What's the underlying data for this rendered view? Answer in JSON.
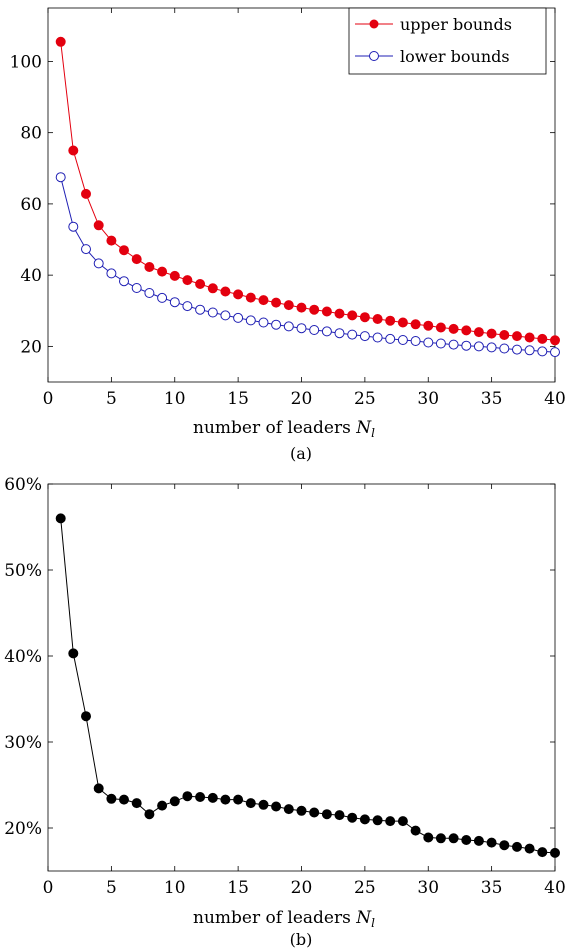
{
  "chart_data": [
    {
      "type": "line",
      "caption": "(a)",
      "xlabel": "number of leaders",
      "xlabel_symbol": "N",
      "xlabel_subscript": "l",
      "xlim": [
        0,
        40
      ],
      "ylim": [
        10,
        115
      ],
      "xticks": [
        0,
        5,
        10,
        15,
        20,
        25,
        30,
        35,
        40
      ],
      "yticks": [
        20,
        40,
        60,
        80,
        100
      ],
      "legend_position": "top-right",
      "x": [
        1,
        2,
        3,
        4,
        5,
        6,
        7,
        8,
        9,
        10,
        11,
        12,
        13,
        14,
        15,
        16,
        17,
        18,
        19,
        20,
        21,
        22,
        23,
        24,
        25,
        26,
        27,
        28,
        29,
        30,
        31,
        32,
        33,
        34,
        35,
        36,
        37,
        38,
        39,
        40
      ],
      "series": [
        {
          "name": "upper bounds",
          "color": "#e3000f",
          "marker": "filled-circle",
          "values": [
            105.5,
            75.0,
            62.8,
            54.0,
            49.7,
            47.0,
            44.5,
            42.3,
            41.0,
            39.8,
            38.6,
            37.5,
            36.3,
            35.4,
            34.6,
            33.7,
            33.0,
            32.3,
            31.6,
            30.9,
            30.3,
            29.8,
            29.2,
            28.7,
            28.2,
            27.7,
            27.2,
            26.7,
            26.2,
            25.8,
            25.3,
            24.9,
            24.5,
            24.0,
            23.6,
            23.2,
            22.9,
            22.5,
            22.1,
            21.7
          ]
        },
        {
          "name": "lower bounds",
          "color": "#1f1fb4",
          "marker": "open-circle",
          "values": [
            67.5,
            53.6,
            47.3,
            43.3,
            40.5,
            38.3,
            36.4,
            35.0,
            33.6,
            32.4,
            31.3,
            30.3,
            29.5,
            28.7,
            28.0,
            27.3,
            26.7,
            26.1,
            25.6,
            25.1,
            24.6,
            24.2,
            23.7,
            23.3,
            22.9,
            22.5,
            22.1,
            21.8,
            21.5,
            21.1,
            20.8,
            20.5,
            20.2,
            20.0,
            19.7,
            19.4,
            19.1,
            18.9,
            18.6,
            18.4
          ]
        }
      ]
    },
    {
      "type": "line",
      "caption": "(b)",
      "xlabel": "number of leaders",
      "xlabel_symbol": "N",
      "xlabel_subscript": "l",
      "xlim": [
        0,
        40
      ],
      "ylim": [
        15,
        60
      ],
      "xticks": [
        0,
        5,
        10,
        15,
        20,
        25,
        30,
        35,
        40
      ],
      "yticks": [
        20,
        30,
        40,
        50,
        60
      ],
      "ytick_suffix": "%",
      "x": [
        1,
        2,
        3,
        4,
        5,
        6,
        7,
        8,
        9,
        10,
        11,
        12,
        13,
        14,
        15,
        16,
        17,
        18,
        19,
        20,
        21,
        22,
        23,
        24,
        25,
        26,
        27,
        28,
        29,
        30,
        31,
        32,
        33,
        34,
        35,
        36,
        37,
        38,
        39,
        40
      ],
      "series": [
        {
          "color": "#000000",
          "marker": "filled-circle",
          "values": [
            56.0,
            40.3,
            33.0,
            24.6,
            23.4,
            23.3,
            22.9,
            21.6,
            22.6,
            23.1,
            23.7,
            23.6,
            23.5,
            23.3,
            23.3,
            22.9,
            22.7,
            22.5,
            22.2,
            22.0,
            21.8,
            21.6,
            21.5,
            21.2,
            21.0,
            20.9,
            20.8,
            20.8,
            19.7,
            18.9,
            18.8,
            18.8,
            18.6,
            18.5,
            18.3,
            18.0,
            17.8,
            17.6,
            17.2,
            17.1
          ]
        }
      ]
    }
  ]
}
